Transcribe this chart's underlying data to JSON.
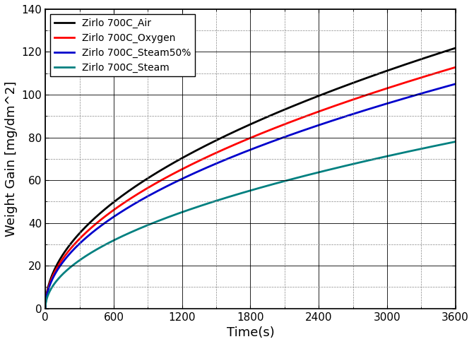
{
  "title": "",
  "xlabel": "Time(s)",
  "ylabel": "Weight Gain [mg/dm^2]",
  "xlim": [
    0,
    3600
  ],
  "ylim": [
    0,
    140
  ],
  "xticks": [
    0,
    600,
    1200,
    1800,
    2400,
    3000,
    3600
  ],
  "yticks": [
    0,
    20,
    40,
    60,
    80,
    100,
    120,
    140
  ],
  "series": [
    {
      "label": "Zirlo 700C_Air",
      "color": "#000000",
      "coef": 2.03,
      "exp": 0.5
    },
    {
      "label": "Zirlo 700C_Oxygen",
      "color": "#ff0000",
      "coef": 1.88,
      "exp": 0.5
    },
    {
      "label": "Zirlo 700C_Steam50%",
      "color": "#0000cc",
      "coef": 1.75,
      "exp": 0.5
    },
    {
      "label": "Zirlo 700C_Steam",
      "color": "#008080",
      "coef": 1.3,
      "exp": 0.5
    }
  ],
  "legend_loc": "upper left",
  "linewidth": 2.0,
  "figsize": [
    6.71,
    4.87
  ],
  "dpi": 100
}
